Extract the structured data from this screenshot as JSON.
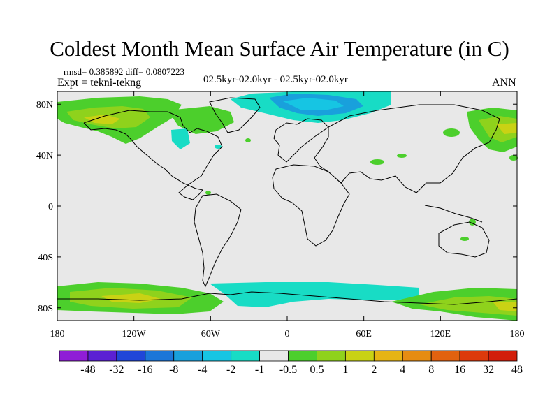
{
  "title": "Coldest Month Mean Surface Air Temperature (in C)",
  "stats": "rmsd= 0.385892 diff= 0.0807223",
  "expt": "Expt = tekni-tekng",
  "subtitle": "02.5kyr-02.0kyr - 02.5kyr-02.0kyr",
  "season": "ANN",
  "lon_ticks": [
    "180",
    "120W",
    "60W",
    "0",
    "60E",
    "120E",
    "180"
  ],
  "lat_ticks": [
    "80N",
    "40N",
    "0",
    "40S",
    "80S"
  ],
  "colorbar": {
    "colors": [
      "#8f1dd6",
      "#5b20d3",
      "#2046d8",
      "#1c76d8",
      "#19a0dc",
      "#16c5e3",
      "#18dcc5",
      "#e8e8e8",
      "#4ccf2c",
      "#8fd21c",
      "#c9d214",
      "#e6b414",
      "#e68c12",
      "#e2620f",
      "#dc3a0c",
      "#d21e0a"
    ],
    "labels": [
      "-48",
      "-32",
      "-16",
      "-8",
      "-4",
      "-2",
      "-1",
      "-0.5",
      "0.5",
      "1",
      "2",
      "4",
      "8",
      "16",
      "32",
      "48"
    ]
  },
  "colors": {
    "background": "#e8e8e8",
    "green": "#4ccf2c",
    "yellowgreen": "#8fd21c",
    "yellow": "#c9d214",
    "cyan": "#18dcc5",
    "lightblue": "#16c5e3",
    "blue": "#19a0dc"
  }
}
